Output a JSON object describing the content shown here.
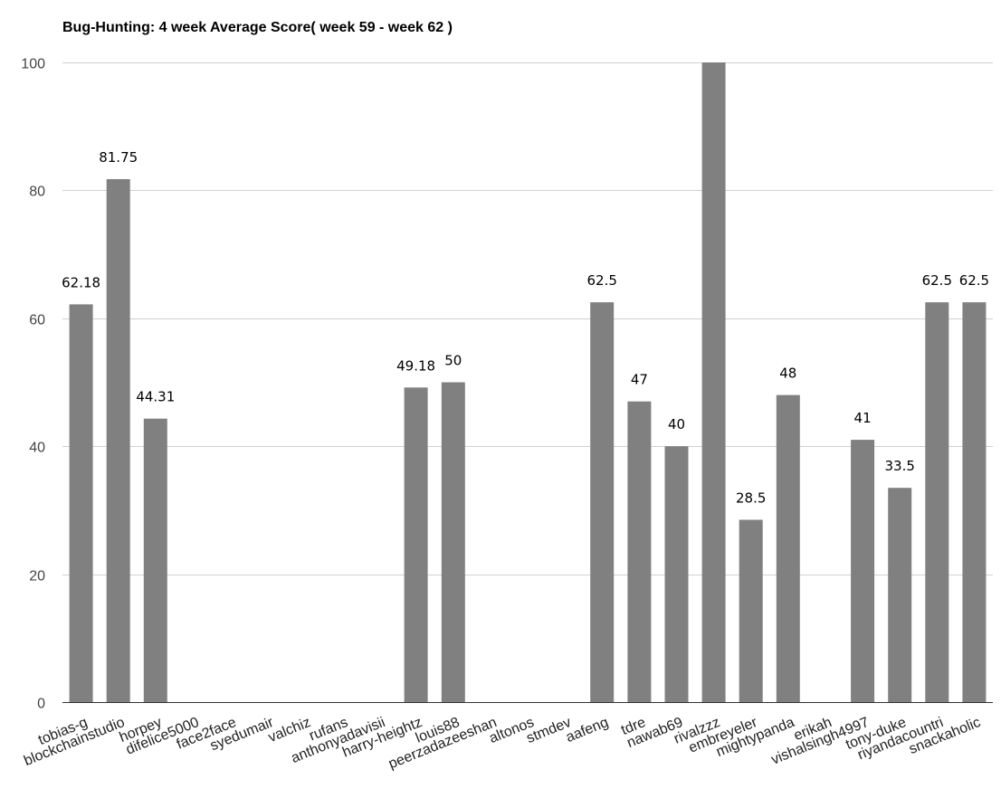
{
  "chart_data": {
    "type": "bar",
    "title": "Bug-Hunting: 4 week Average Score( week 59 - week 62 )",
    "xlabel": "",
    "ylabel": "",
    "ylim": [
      0,
      100
    ],
    "yticks": [
      0,
      20,
      40,
      60,
      80,
      100
    ],
    "grid": true,
    "bar_color": "#808080",
    "categories": [
      "tobias-g",
      "blockchainstudio",
      "horpey",
      "difelice5000",
      "face2face",
      "syedumair",
      "valchiz",
      "rufans",
      "anthonyadavisii",
      "harry-heightz",
      "louis88",
      "peerzadazeeshan",
      "altonos",
      "stmdev",
      "aafeng",
      "tdre",
      "nawab69",
      "rivalzzz",
      "embreyeler",
      "mightypanda",
      "erikah",
      "vishalsingh4997",
      "tony-duke",
      "riyandacountri",
      "snackaholic"
    ],
    "values": [
      62.18,
      81.75,
      44.31,
      0,
      0,
      0,
      0,
      0,
      0,
      49.18,
      50,
      0,
      0,
      0,
      62.5,
      47,
      40,
      100,
      28.5,
      48,
      0,
      41,
      33.5,
      62.5,
      62.5
    ],
    "data_labels": [
      "62.18",
      "81.75",
      "44.31",
      "",
      "",
      "",
      "",
      "",
      "",
      "49.18",
      "50",
      "",
      "",
      "",
      "62.5",
      "47",
      "40",
      "",
      "28.5",
      "48",
      "",
      "41",
      "33.5",
      "62.5",
      "62.5"
    ]
  }
}
